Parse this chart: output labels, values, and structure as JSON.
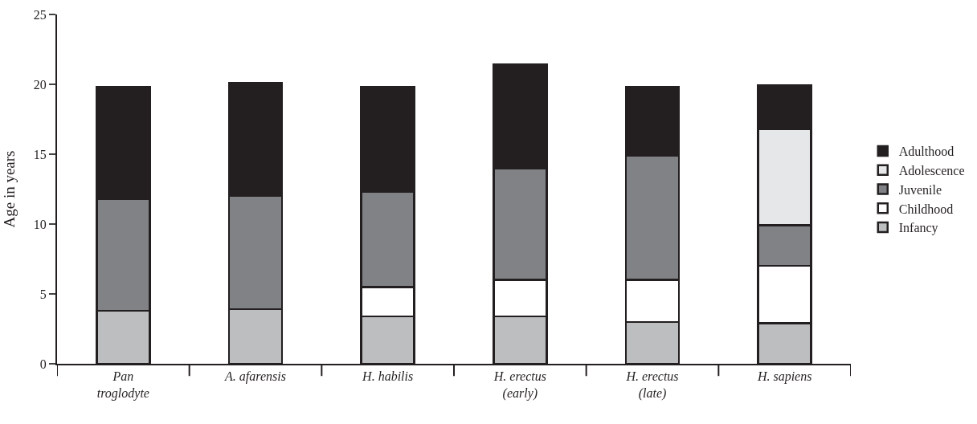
{
  "chart_data": {
    "type": "bar",
    "stacked": true,
    "ylabel": "Age in years",
    "categories": [
      "Pan\ntroglodyte",
      "A. afarensis",
      "H. habilis",
      "H. erectus\n(early)",
      "H. erectus\n(late)",
      "H. sapiens"
    ],
    "series": [
      {
        "name": "Infancy",
        "color": "#bcbec0",
        "values": [
          3.8,
          3.9,
          3.4,
          3.4,
          3.0,
          2.9
        ]
      },
      {
        "name": "Childhood",
        "color": "#ffffff",
        "values": [
          null,
          null,
          2.1,
          2.6,
          3.0,
          4.1
        ]
      },
      {
        "name": "Juvenile",
        "color": "#808285",
        "values": [
          8.0,
          8.1,
          6.8,
          8.0,
          8.9,
          2.9
        ]
      },
      {
        "name": "Adolescence",
        "color": "#e6e7e8",
        "values": [
          null,
          null,
          null,
          null,
          null,
          6.9
        ]
      },
      {
        "name": "Adulthood",
        "color": "#231f20",
        "values": [
          8.0,
          8.1,
          7.5,
          7.4,
          4.9,
          3.1
        ]
      }
    ],
    "ylim": [
      0,
      25
    ],
    "yticks": [
      0,
      5,
      10,
      15,
      20,
      25
    ],
    "legend": "right"
  }
}
